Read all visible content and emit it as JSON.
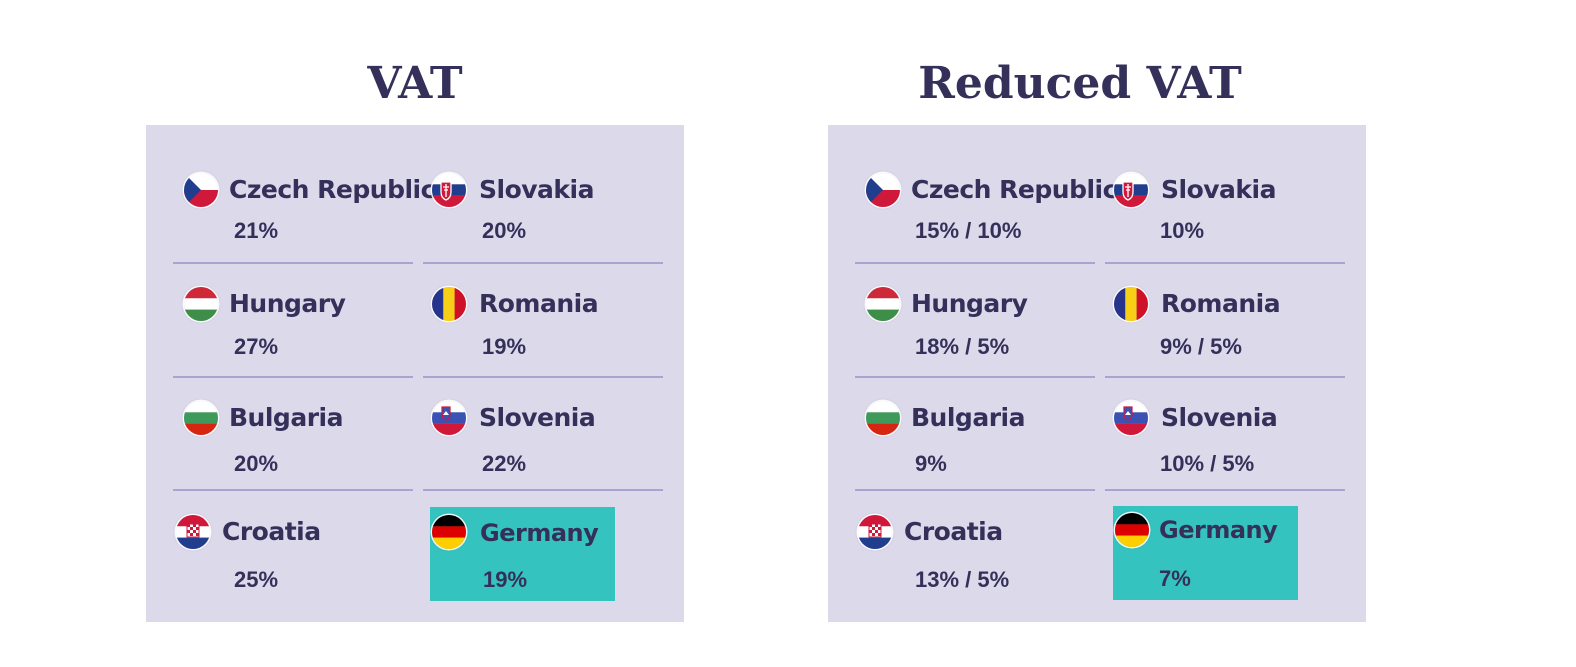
{
  "panels": [
    {
      "title": "VAT",
      "cells": [
        {
          "country": "Czech Republic",
          "flag": "czech-flag-icon",
          "rate": "21%",
          "highlighted": false
        },
        {
          "country": "Slovakia",
          "flag": "slovakia-flag-icon",
          "rate": "20%",
          "highlighted": false
        },
        {
          "country": "Hungary",
          "flag": "hungary-flag-icon",
          "rate": "27%",
          "highlighted": false
        },
        {
          "country": "Romania",
          "flag": "romania-flag-icon",
          "rate": "19%",
          "highlighted": false
        },
        {
          "country": "Bulgaria",
          "flag": "bulgaria-flag-icon",
          "rate": "20%",
          "highlighted": false
        },
        {
          "country": "Slovenia",
          "flag": "slovenia-flag-icon",
          "rate": "22%",
          "highlighted": false
        },
        {
          "country": "Croatia",
          "flag": "croatia-flag-icon",
          "rate": "25%",
          "highlighted": false
        },
        {
          "country": "Germany",
          "flag": "germany-flag-icon",
          "rate": "19%",
          "highlighted": true
        }
      ]
    },
    {
      "title": "Reduced VAT",
      "cells": [
        {
          "country": "Czech Republic",
          "flag": "czech-flag-icon",
          "rate": "15% / 10%",
          "highlighted": false
        },
        {
          "country": "Slovakia",
          "flag": "slovakia-flag-icon",
          "rate": "10%",
          "highlighted": false
        },
        {
          "country": "Hungary",
          "flag": "hungary-flag-icon",
          "rate": "18% / 5%",
          "highlighted": false
        },
        {
          "country": "Romania",
          "flag": "romania-flag-icon",
          "rate": "9% / 5%",
          "highlighted": false
        },
        {
          "country": "Bulgaria",
          "flag": "bulgaria-flag-icon",
          "rate": "9%",
          "highlighted": false
        },
        {
          "country": "Slovenia",
          "flag": "slovenia-flag-icon",
          "rate": "10% / 5%",
          "highlighted": false
        },
        {
          "country": "Croatia",
          "flag": "croatia-flag-icon",
          "rate": "13% / 5%",
          "highlighted": false
        },
        {
          "country": "Germany",
          "flag": "germany-flag-icon",
          "rate": "7%",
          "highlighted": true
        }
      ]
    }
  ],
  "colors": {
    "card_background": "#dcd9ea",
    "highlight": "#34c3be",
    "text": "#34305a",
    "divider": "#a9a3d2"
  }
}
